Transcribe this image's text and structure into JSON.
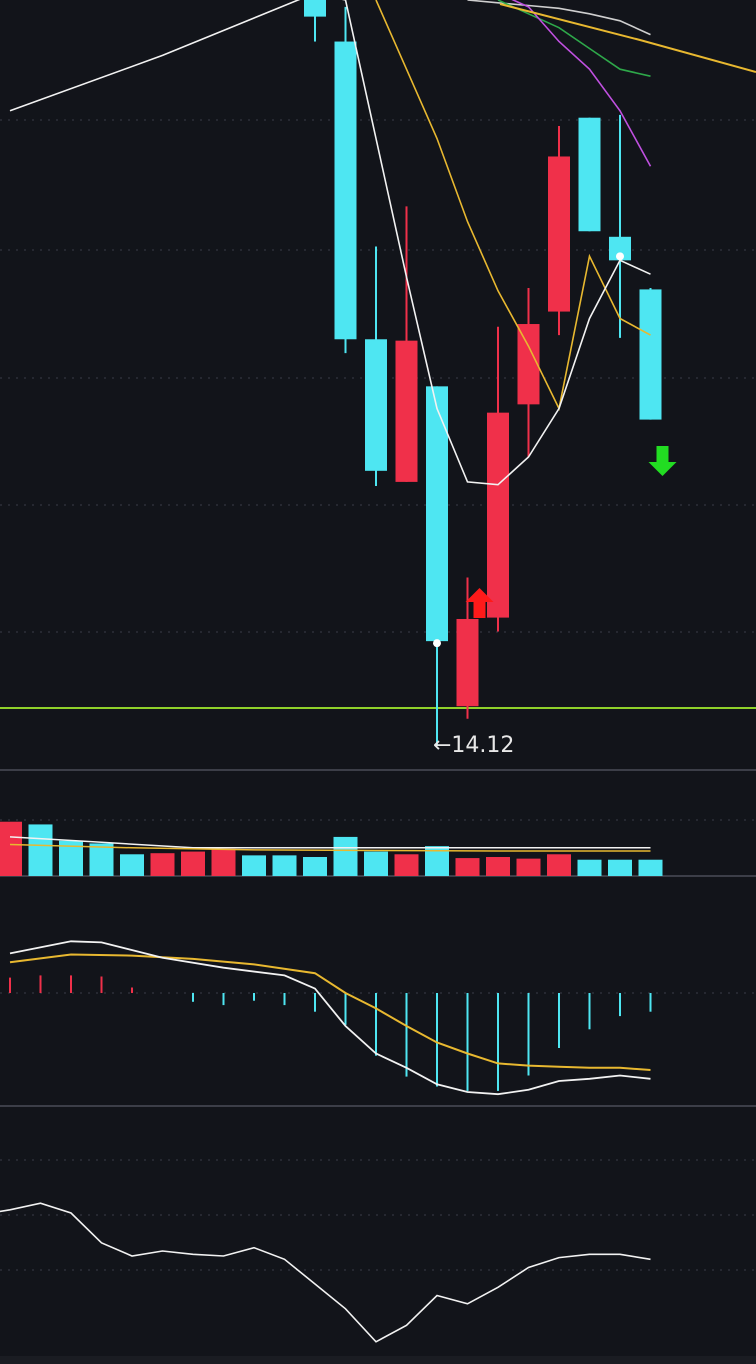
{
  "colors": {
    "background": "#12141a",
    "up": "#f0304a",
    "down": "#4ee6f2",
    "ma5": "#f2f2f2",
    "ma10": "#e8b830",
    "ma20": "#c050e0",
    "ma30": "#2ea84a",
    "support": "#8fd12a",
    "grid": "#3a3d48",
    "buy_arrow": "#ff1a1a",
    "sell_arrow": "#22dd22"
  },
  "chart_data": [
    {
      "type": "candlestick",
      "title": "",
      "ylim": [
        13.2,
        19.5
      ],
      "candles": [
        {
          "i": 0,
          "open": 19.5,
          "close": 19.38,
          "high": 19.55,
          "low": 19.2
        },
        {
          "i": 1,
          "open": 19.2,
          "close": 17.05,
          "high": 19.45,
          "low": 16.95
        },
        {
          "i": 2,
          "open": 17.05,
          "close": 16.1,
          "high": 17.72,
          "low": 15.99
        },
        {
          "i": 3,
          "open": 16.02,
          "close": 17.04,
          "high": 18.01,
          "low": 16.02
        },
        {
          "i": 4,
          "open": 16.71,
          "close": 14.87,
          "high": 16.71,
          "low": 14.12
        },
        {
          "i": 5,
          "open": 14.4,
          "close": 15.03,
          "high": 15.33,
          "low": 14.31
        },
        {
          "i": 6,
          "open": 15.04,
          "close": 16.52,
          "high": 17.14,
          "low": 14.94
        },
        {
          "i": 7,
          "open": 16.58,
          "close": 17.16,
          "high": 17.42,
          "low": 16.2
        },
        {
          "i": 8,
          "open": 17.25,
          "close": 18.37,
          "high": 18.59,
          "low": 17.08
        },
        {
          "i": 9,
          "open": 18.65,
          "close": 17.83,
          "high": 18.65,
          "low": 17.83
        },
        {
          "i": 10,
          "open": 17.79,
          "close": 17.62,
          "high": 18.67,
          "low": 17.06
        },
        {
          "i": 11,
          "open": 17.41,
          "close": 16.47,
          "high": 17.42,
          "low": 16.47
        }
      ],
      "ma5": [
        [
          -10,
          18.7
        ],
        [
          -5,
          19.1
        ],
        [
          0,
          19.55
        ],
        [
          1,
          19.5
        ],
        [
          2,
          18.5
        ],
        [
          3,
          17.5
        ],
        [
          4,
          16.55
        ],
        [
          5,
          16.02
        ],
        [
          6,
          16.0
        ],
        [
          7,
          16.2
        ],
        [
          8,
          16.55
        ],
        [
          9,
          17.2
        ],
        [
          10,
          17.62
        ],
        [
          11,
          17.52
        ]
      ],
      "ma10": [
        [
          2,
          19.5
        ],
        [
          3,
          19.0
        ],
        [
          4,
          18.5
        ],
        [
          5,
          17.9
        ],
        [
          6,
          17.4
        ],
        [
          7,
          17.0
        ],
        [
          8,
          16.55
        ],
        [
          9,
          17.65
        ],
        [
          10,
          17.2
        ],
        [
          11,
          17.08
        ]
      ],
      "ma20": [
        [
          6,
          19.55
        ],
        [
          7,
          19.45
        ],
        [
          8,
          19.2
        ],
        [
          9,
          19.0
        ],
        [
          10,
          18.7
        ],
        [
          11,
          18.3
        ]
      ],
      "ma30": [
        [
          6,
          19.5
        ],
        [
          7,
          19.4
        ],
        [
          8,
          19.3
        ],
        [
          9,
          19.15
        ],
        [
          10,
          19.0
        ],
        [
          11,
          18.95
        ]
      ],
      "ma60": [
        [
          5,
          19.5
        ],
        [
          6,
          19.48
        ],
        [
          7,
          19.46
        ],
        [
          8,
          19.44
        ],
        [
          9,
          19.4
        ],
        [
          10,
          19.35
        ],
        [
          11,
          19.25
        ]
      ],
      "support_level": 14.12,
      "low_annotation": {
        "index": 4,
        "value": 14.12,
        "text": "←14.12"
      },
      "buy_signal_index": 5,
      "sell_signal_index": 11
    },
    {
      "type": "bar",
      "title": "",
      "volume": [
        {
          "i": -10,
          "v": 1.0,
          "up": true
        },
        {
          "i": -9,
          "v": 0.95,
          "up": false
        },
        {
          "i": -8,
          "v": 0.65,
          "up": false
        },
        {
          "i": -7,
          "v": 0.6,
          "up": false
        },
        {
          "i": -6,
          "v": 0.4,
          "up": false
        },
        {
          "i": -5,
          "v": 0.42,
          "up": true
        },
        {
          "i": -4,
          "v": 0.45,
          "up": true
        },
        {
          "i": -3,
          "v": 0.5,
          "up": true
        },
        {
          "i": -2,
          "v": 0.38,
          "up": false
        },
        {
          "i": -1,
          "v": 0.38,
          "up": false
        },
        {
          "i": 0,
          "v": 0.35,
          "up": false
        },
        {
          "i": 1,
          "v": 0.72,
          "up": false
        },
        {
          "i": 2,
          "v": 0.45,
          "up": false
        },
        {
          "i": 3,
          "v": 0.4,
          "up": true
        },
        {
          "i": 4,
          "v": 0.55,
          "up": false
        },
        {
          "i": 5,
          "v": 0.33,
          "up": true
        },
        {
          "i": 6,
          "v": 0.35,
          "up": true
        },
        {
          "i": 7,
          "v": 0.32,
          "up": true
        },
        {
          "i": 8,
          "v": 0.4,
          "up": true
        },
        {
          "i": 9,
          "v": 0.3,
          "up": false
        },
        {
          "i": 10,
          "v": 0.3,
          "up": false
        },
        {
          "i": 11,
          "v": 0.3,
          "up": false
        }
      ],
      "vol_ma1": [
        [
          -10,
          0.72
        ],
        [
          -7,
          0.62
        ],
        [
          -4,
          0.52
        ],
        [
          0,
          0.52
        ],
        [
          4,
          0.52
        ],
        [
          8,
          0.52
        ],
        [
          11,
          0.52
        ]
      ],
      "vol_ma2": [
        [
          -10,
          0.58
        ],
        [
          -6,
          0.52
        ],
        [
          -2,
          0.48
        ],
        [
          2,
          0.47
        ],
        [
          6,
          0.46
        ],
        [
          11,
          0.46
        ]
      ],
      "ylim": [
        0,
        1.4
      ]
    },
    {
      "type": "bar",
      "title": "",
      "ylim": [
        -1.25,
        0.65
      ],
      "macd_hist": [
        {
          "i": -10,
          "v": 0.14
        },
        {
          "i": -9,
          "v": 0.16
        },
        {
          "i": -8,
          "v": 0.16
        },
        {
          "i": -7,
          "v": 0.15
        },
        {
          "i": -6,
          "v": 0.05
        },
        {
          "i": -5,
          "v": 0.0
        },
        {
          "i": -4,
          "v": -0.08
        },
        {
          "i": -3,
          "v": -0.11
        },
        {
          "i": -2,
          "v": -0.07
        },
        {
          "i": -1,
          "v": -0.11
        },
        {
          "i": 0,
          "v": -0.17
        },
        {
          "i": 1,
          "v": -0.29
        },
        {
          "i": 2,
          "v": -0.57
        },
        {
          "i": 3,
          "v": -0.76
        },
        {
          "i": 4,
          "v": -0.85
        },
        {
          "i": 5,
          "v": -0.89
        },
        {
          "i": 6,
          "v": -0.89
        },
        {
          "i": 7,
          "v": -0.75
        },
        {
          "i": 8,
          "v": -0.5
        },
        {
          "i": 9,
          "v": -0.33
        },
        {
          "i": 10,
          "v": -0.21
        },
        {
          "i": 11,
          "v": -0.17
        }
      ],
      "dif": [
        [
          -10,
          0.36
        ],
        [
          -8,
          0.47
        ],
        [
          -7,
          0.46
        ],
        [
          -5,
          0.32
        ],
        [
          -3,
          0.23
        ],
        [
          -1,
          0.16
        ],
        [
          0,
          0.04
        ],
        [
          1,
          -0.3
        ],
        [
          2,
          -0.55
        ],
        [
          3,
          -0.68
        ],
        [
          4,
          -0.83
        ],
        [
          5,
          -0.9
        ],
        [
          6,
          -0.92
        ],
        [
          7,
          -0.88
        ],
        [
          8,
          -0.8
        ],
        [
          9,
          -0.78
        ],
        [
          10,
          -0.75
        ],
        [
          11,
          -0.78
        ]
      ],
      "dea": [
        [
          -10,
          0.28
        ],
        [
          -8,
          0.35
        ],
        [
          -6,
          0.34
        ],
        [
          -4,
          0.31
        ],
        [
          -2,
          0.26
        ],
        [
          0,
          0.18
        ],
        [
          1,
          0.0
        ],
        [
          2,
          -0.14
        ],
        [
          3,
          -0.3
        ],
        [
          4,
          -0.45
        ],
        [
          5,
          -0.55
        ],
        [
          6,
          -0.64
        ],
        [
          7,
          -0.66
        ],
        [
          8,
          -0.67
        ],
        [
          9,
          -0.68
        ],
        [
          10,
          -0.68
        ],
        [
          11,
          -0.7
        ]
      ]
    },
    {
      "type": "line",
      "title": "",
      "ylim": [
        0,
        100
      ],
      "values": [
        [
          -11,
          82
        ],
        [
          -10,
          85
        ],
        [
          -9,
          89
        ],
        [
          -8,
          83
        ],
        [
          -7,
          65
        ],
        [
          -6,
          57
        ],
        [
          -5,
          60
        ],
        [
          -4,
          58
        ],
        [
          -3,
          57
        ],
        [
          -2,
          62
        ],
        [
          -1,
          55
        ],
        [
          0,
          40
        ],
        [
          1,
          25
        ],
        [
          2,
          5
        ],
        [
          3,
          15
        ],
        [
          4,
          33
        ],
        [
          5,
          28
        ],
        [
          6,
          38
        ],
        [
          7,
          50
        ],
        [
          8,
          56
        ],
        [
          9,
          58
        ],
        [
          10,
          58
        ],
        [
          11,
          55
        ]
      ]
    }
  ]
}
